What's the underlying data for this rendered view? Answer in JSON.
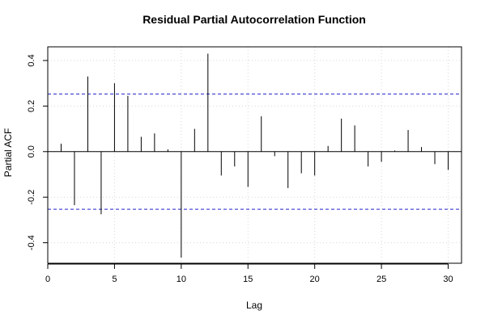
{
  "chart_data": {
    "type": "bar",
    "title": "Residual Partial Autocorrelation Function",
    "xlabel": "Lag",
    "ylabel": "Partial ACF",
    "xlim": [
      0,
      31
    ],
    "ylim": [
      -0.49,
      0.46
    ],
    "x_ticks": [
      0,
      5,
      10,
      15,
      20,
      25,
      30
    ],
    "x_tick_labels": [
      "0",
      "5",
      "10",
      "15",
      "20",
      "25",
      "30"
    ],
    "y_ticks": [
      -0.4,
      -0.2,
      0.0,
      0.2,
      0.4
    ],
    "y_tick_labels": [
      "-0.4",
      "-0.2",
      "0.0",
      "0.2",
      "0.4"
    ],
    "grid": true,
    "confidence_bound": 0.253,
    "confidence_color": "#2222cc",
    "lags": [
      1,
      2,
      3,
      4,
      5,
      6,
      7,
      8,
      9,
      10,
      11,
      12,
      13,
      14,
      15,
      16,
      17,
      18,
      19,
      20,
      21,
      22,
      23,
      24,
      25,
      26,
      27,
      28,
      29,
      30
    ],
    "values": [
      0.035,
      -0.235,
      0.33,
      -0.275,
      0.3,
      0.245,
      0.065,
      0.08,
      0.01,
      -0.465,
      0.1,
      0.43,
      -0.105,
      -0.065,
      -0.155,
      0.155,
      -0.02,
      -0.16,
      -0.095,
      -0.105,
      0.025,
      0.145,
      0.115,
      -0.065,
      -0.045,
      0.005,
      0.095,
      0.02,
      -0.055,
      -0.08
    ]
  }
}
